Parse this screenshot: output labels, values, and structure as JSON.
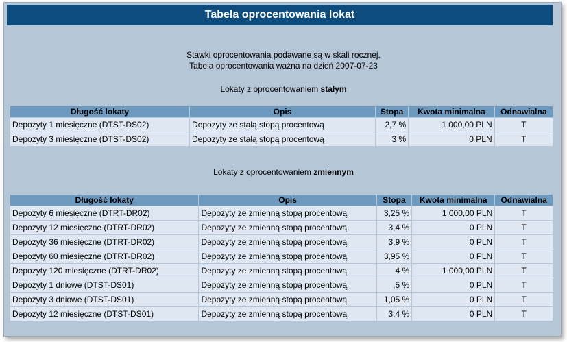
{
  "title": "Tabela oprocentowania lokat",
  "info_line1": "Stawki oprocentowania podawane są w skali rocznej.",
  "info_line2": "Tabela oprocentowania ważna na dzień 2007-07-23",
  "fixed_section": {
    "prefix": "Lokaty z oprocentowaniem ",
    "emphasis": "stałym"
  },
  "variable_section": {
    "prefix": "Lokaty z oprocentowaniem ",
    "emphasis": "zmiennym"
  },
  "columns": {
    "length": "Długość lokaty",
    "description": "Opis",
    "rate": "Stopa",
    "min_amount": "Kwota minimalna",
    "renewable": "Odnawialna"
  },
  "fixed_rows": [
    {
      "length": "Depozyty  1 miesięczne   (DTST-DS02)",
      "description": "Depozyty ze stałą stopą procentową",
      "rate": "2,7  %",
      "min_amount": "1 000,00 PLN",
      "renewable": "T"
    },
    {
      "length": "Depozyty  3 miesięczne   (DTST-DS02)",
      "description": "Depozyty ze stałą stopą procentową",
      "rate": "3  %",
      "min_amount": "0 PLN",
      "renewable": "T"
    }
  ],
  "variable_rows": [
    {
      "length": "Depozyty  6 miesięczne   (DTRT-DR02)",
      "description": "Depozyty ze zmienną stopą procentową",
      "rate": "3,25  %",
      "min_amount": "1 000,00 PLN",
      "renewable": "T"
    },
    {
      "length": "Depozyty  12 miesięczne   (DTRT-DR02)",
      "description": "Depozyty ze zmienną stopą procentową",
      "rate": "3,4  %",
      "min_amount": "0 PLN",
      "renewable": "T"
    },
    {
      "length": "Depozyty  36 miesięczne   (DTRT-DR02)",
      "description": "Depozyty ze zmienną stopą procentową",
      "rate": "3,9  %",
      "min_amount": "0 PLN",
      "renewable": "T"
    },
    {
      "length": "Depozyty  60 miesięczne   (DTRT-DR02)",
      "description": "Depozyty ze zmienną stopą procentową",
      "rate": "3,95  %",
      "min_amount": "0 PLN",
      "renewable": "T"
    },
    {
      "length": "Depozyty  120 miesięczne   (DTRT-DR02)",
      "description": "Depozyty ze zmienną stopą procentową",
      "rate": "4  %",
      "min_amount": "1 000,00 PLN",
      "renewable": "T"
    },
    {
      "length": "Depozyty  1 dniowe   (DTST-DS01)",
      "description": "Depozyty ze zmienną stopą procentową",
      "rate": ",5  %",
      "min_amount": "0 PLN",
      "renewable": "T"
    },
    {
      "length": "Depozyty  3 dniowe   (DTST-DS01)",
      "description": "Depozyty ze zmienną stopą procentową",
      "rate": "1,05  %",
      "min_amount": "0 PLN",
      "renewable": "T"
    },
    {
      "length": "Depozyty  12 miesięczne   (DTST-DS01)",
      "description": "Depozyty ze zmienną stopą procentową",
      "rate": "3,4  %",
      "min_amount": "0 PLN",
      "renewable": "T"
    }
  ]
}
